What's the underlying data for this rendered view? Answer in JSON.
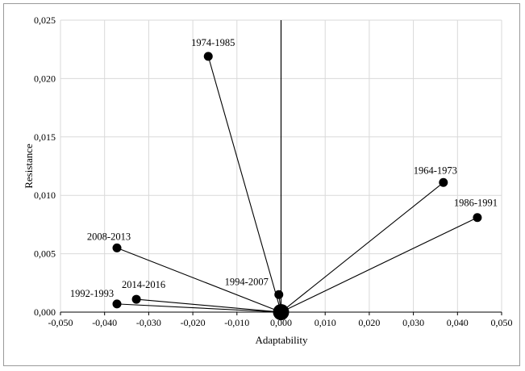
{
  "chart_data": {
    "type": "scatter",
    "xlabel": "Adaptability",
    "ylabel": "Resistance",
    "xlim": [
      -0.05,
      0.05
    ],
    "ylim": [
      0,
      0.025
    ],
    "x_ticks": [
      -0.05,
      -0.04,
      -0.03,
      -0.02,
      -0.01,
      0,
      0.01,
      0.02,
      0.03,
      0.04,
      0.05
    ],
    "y_ticks": [
      0,
      0.005,
      0.01,
      0.015,
      0.02,
      0.025
    ],
    "x_tick_labels": [
      "-0,050",
      "-0,040",
      "-0,030",
      "-0,020",
      "-0,010",
      "0,000",
      "0,010",
      "0,020",
      "0,030",
      "0,040",
      "0,050"
    ],
    "y_tick_labels": [
      "0,000",
      "0,005",
      "0,010",
      "0,015",
      "0,020",
      "0,025"
    ],
    "grid": true,
    "origin": {
      "x": 0,
      "y": 0
    },
    "points": [
      {
        "label": "1974-1985",
        "x": -0.0165,
        "y": 0.0219
      },
      {
        "label": "1964-1973",
        "x": 0.0368,
        "y": 0.0111
      },
      {
        "label": "1986-1991",
        "x": 0.0445,
        "y": 0.0081
      },
      {
        "label": "2008-2013",
        "x": -0.0372,
        "y": 0.0055
      },
      {
        "label": "1994-2007",
        "x": -0.0005,
        "y": 0.0015
      },
      {
        "label": "2014-2016",
        "x": -0.0328,
        "y": 0.0011
      },
      {
        "label": "1992-1993",
        "x": -0.0372,
        "y": 0.0007
      }
    ],
    "colors": {
      "marker": "#000000",
      "line": "#000000",
      "grid": "#d9d9d9",
      "axis": "#000000"
    }
  }
}
